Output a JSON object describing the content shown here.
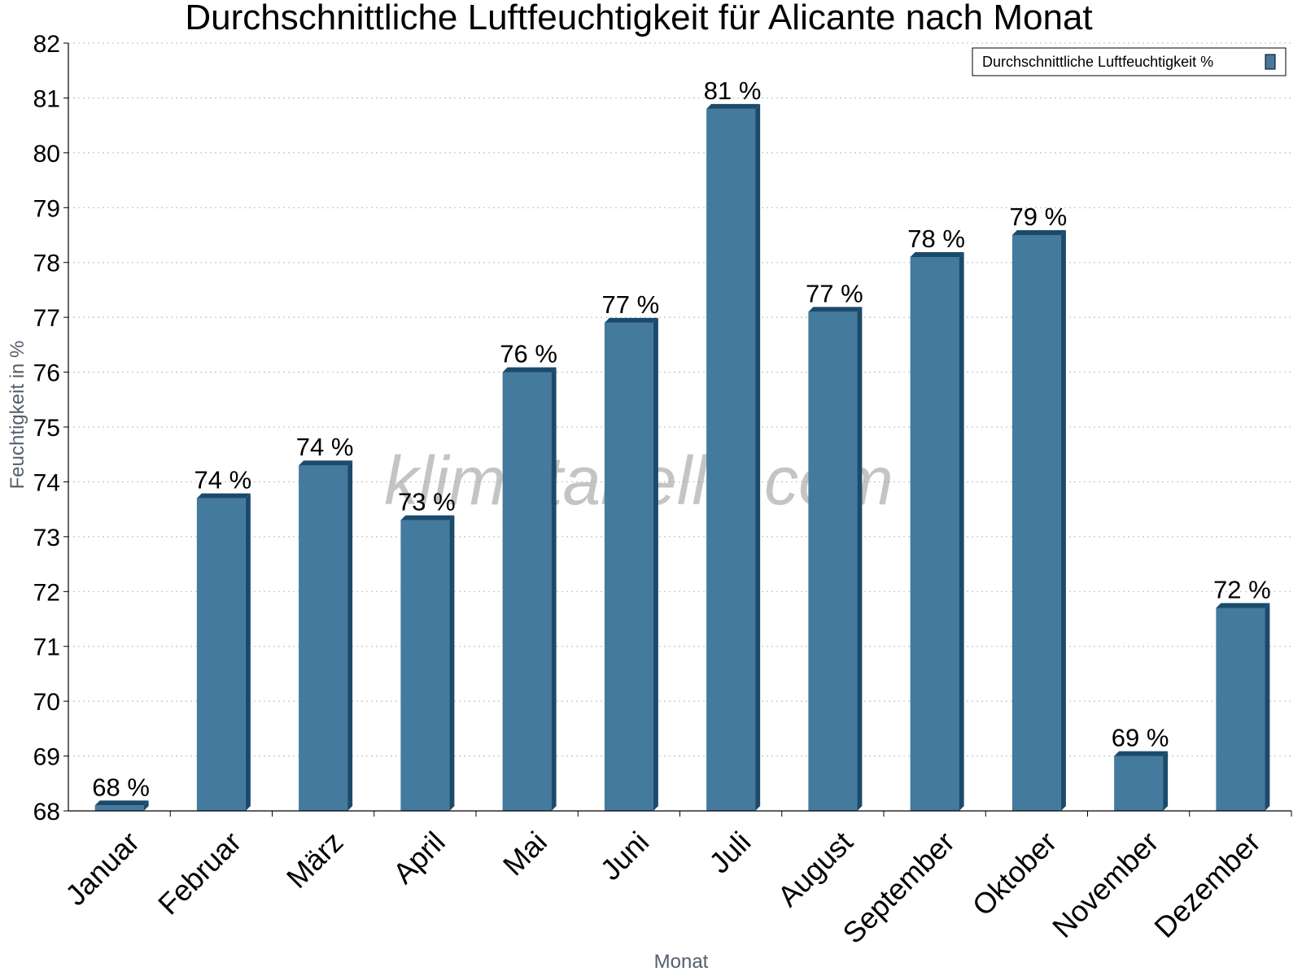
{
  "chart_data": {
    "type": "bar",
    "title": "Durchschnittliche Luftfeuchtigkeit für Alicante nach Monat",
    "xlabel": "Monat",
    "ylabel": "Feuchtigkeit in %",
    "ylim": [
      68,
      82
    ],
    "yticks": [
      "68",
      "69",
      "70",
      "71",
      "72",
      "73",
      "74",
      "75",
      "76",
      "77",
      "78",
      "79",
      "80",
      "81",
      "82"
    ],
    "grid": true,
    "legend_position": "top-right",
    "categories": [
      "Januar",
      "Februar",
      "März",
      "April",
      "Mai",
      "Juni",
      "Juli",
      "August",
      "September",
      "Oktober",
      "November",
      "Dezember"
    ],
    "series": [
      {
        "name": "Durchschnittliche Luftfeuchtigkeit %",
        "values": [
          68.1,
          73.7,
          74.3,
          73.3,
          76.0,
          76.9,
          80.8,
          77.1,
          78.1,
          78.5,
          69.0,
          71.7
        ],
        "labels": [
          "68 %",
          "74 %",
          "74 %",
          "73 %",
          "76 %",
          "77 %",
          "81 %",
          "77 %",
          "78 %",
          "79 %",
          "69 %",
          "72 %"
        ],
        "color": "#447a9e",
        "edge_color": "#1b4a6b"
      }
    ],
    "watermark": "klimatabelle.com"
  }
}
